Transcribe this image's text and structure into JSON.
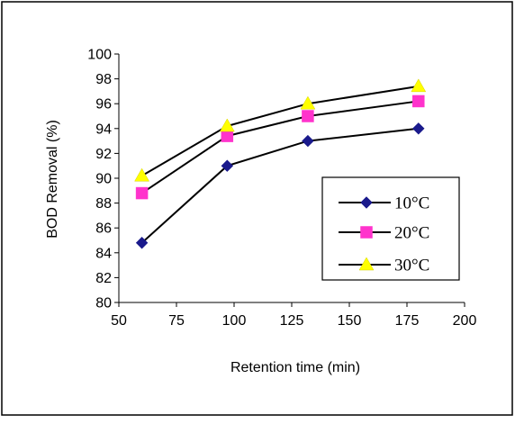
{
  "chart_data": {
    "type": "line",
    "title": "",
    "xlabel": "Retention time (min)",
    "ylabel": "BOD Removal (%)",
    "xlim": [
      50,
      200
    ],
    "ylim": [
      80,
      100
    ],
    "xticks": [
      50,
      75,
      100,
      125,
      150,
      175,
      200
    ],
    "yticks": [
      80,
      82,
      84,
      86,
      88,
      90,
      92,
      94,
      96,
      98,
      100
    ],
    "grid": false,
    "legend_position": "right",
    "x": [
      60,
      97,
      132,
      180
    ],
    "series": [
      {
        "name": "10°C",
        "values": [
          84.8,
          91.0,
          93.0,
          94.0
        ],
        "marker": "diamond",
        "color": "#1a1a8c"
      },
      {
        "name": "20°C",
        "values": [
          88.8,
          93.4,
          95.0,
          96.2
        ],
        "marker": "square",
        "color": "#ff33cc"
      },
      {
        "name": "30°C",
        "values": [
          90.2,
          94.2,
          96.0,
          97.4
        ],
        "marker": "triangle",
        "color": "#ffff00"
      }
    ]
  }
}
